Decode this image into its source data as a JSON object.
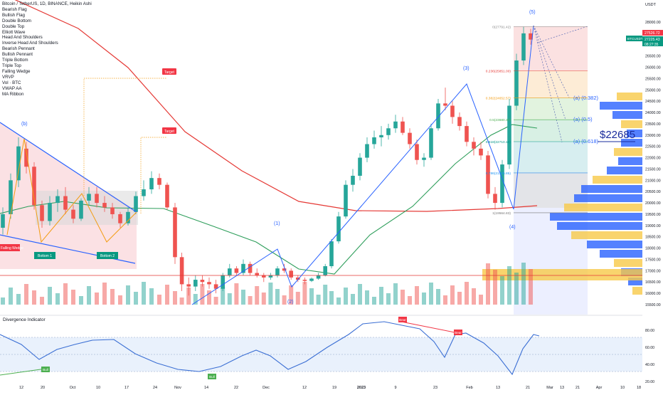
{
  "header": {
    "title": "Bitcoin / TetherUS, 1D, BINANCE, Heikin Ashi",
    "indicators": [
      "Bearish Flag",
      "Bullish Flag",
      "Double Bottom",
      "Double Top",
      "Elliott Wave",
      "Head And Shoulders",
      "Inverse Head And Shoulders",
      "Bearish Pennant",
      "Bullish Pennant",
      "Triple Bottom",
      "Triple Top",
      "Falling Wedge",
      "VRVP",
      "Vol · BTC",
      "VWAP AA",
      "MA Ribbon"
    ]
  },
  "colors": {
    "up": "#26a69a",
    "down": "#ef5350",
    "wave": "#2962ff",
    "ma_red": "#e53935",
    "ma_green": "#2e9e5b",
    "label_red": "#f23645",
    "label_teal": "#089981",
    "volprofile_blue": "#2962ff",
    "volprofile_yellow": "#f7c948"
  },
  "price_axis": {
    "unit": "USDT",
    "ticks": [
      "28000.00",
      "27500.00",
      "27000.00",
      "26500.00",
      "26000.00",
      "25500.00",
      "25000.00",
      "24500.00",
      "24000.00",
      "23500.00",
      "23000.00",
      "22500.00",
      "22000.00",
      "21500.00",
      "21000.00",
      "20500.00",
      "20000.00",
      "19500.00",
      "19000.00",
      "18500.00",
      "18000.00",
      "17500.00",
      "17000.00",
      "16500.00",
      "16000.00",
      "15500.00"
    ],
    "last_price": "27526.72",
    "tag_label": "BTCUSDT",
    "tag_price": "27225.43",
    "tag_countdown": "08:27:35"
  },
  "time_axis": {
    "labels": [
      "12",
      "20",
      "Oct",
      "10",
      "17",
      "24",
      "Nov",
      "14",
      "22",
      "Dec",
      "12",
      "19",
      "2023",
      "9",
      "23",
      "Feb",
      "13",
      "21",
      "Mar",
      "13",
      "21",
      "Apr",
      "10",
      "18"
    ]
  },
  "annotations": {
    "waves": [
      "(b)",
      "(1)",
      "(2)",
      "(3)",
      "(4)",
      "(5)",
      "(a) (0.382)",
      "(a) (0.5)",
      "(a) (0.618)"
    ],
    "pattern_labels": [
      "Falling Wedge",
      "Bottom 1",
      "Bottom 2"
    ],
    "targets": [
      "Target",
      "Target"
    ],
    "fib_levels": [
      "0(27791.42)",
      "0.236(25851.00)",
      "0.382(24652.57)",
      "0.5(23680.37)",
      "0.618(22710.18)",
      "0.786(21325.85)",
      "1(19564.83)"
    ],
    "price_callout": "$22685"
  },
  "indicator_pane": {
    "title": "Divergence Indicator",
    "ticks": [
      "80.00",
      "60.00",
      "40.00",
      "20.00"
    ],
    "signals": [
      "Bull",
      "Bull",
      "Bear",
      "Bear"
    ]
  },
  "chart_data": {
    "type": "candlestick",
    "title": "Bitcoin / TetherUS, 1D, BINANCE, Heikin Ashi",
    "ylim": [
      15400,
      28400
    ],
    "candles": [
      [
        18900,
        19800,
        18600,
        19500
      ],
      [
        19500,
        21300,
        19300,
        21000
      ],
      [
        21000,
        22900,
        20700,
        22500
      ],
      [
        22400,
        22700,
        21300,
        21600
      ],
      [
        21600,
        21800,
        19700,
        19900
      ],
      [
        19900,
        20100,
        18900,
        19200
      ],
      [
        19200,
        20300,
        19000,
        20000
      ],
      [
        20000,
        20600,
        19600,
        20300
      ],
      [
        20300,
        20700,
        19500,
        19700
      ],
      [
        19700,
        19900,
        19100,
        19300
      ],
      [
        19300,
        20200,
        19200,
        20100
      ],
      [
        20100,
        20700,
        19900,
        20400
      ],
      [
        20400,
        20700,
        19800,
        20000
      ],
      [
        20000,
        20300,
        19600,
        19800
      ],
      [
        19800,
        20000,
        19300,
        19500
      ],
      [
        19500,
        19600,
        18900,
        19100
      ],
      [
        19100,
        19800,
        19000,
        19600
      ],
      [
        19600,
        20500,
        19500,
        20300
      ],
      [
        20300,
        21000,
        20100,
        20600
      ],
      [
        20600,
        21400,
        20400,
        21100
      ],
      [
        21100,
        21300,
        20600,
        20800
      ],
      [
        20800,
        20900,
        19700,
        19800
      ],
      [
        19800,
        20000,
        17300,
        17600
      ],
      [
        17600,
        17800,
        16100,
        16400
      ],
      [
        16400,
        16700,
        15900,
        16300
      ],
      [
        16300,
        16800,
        16100,
        16600
      ],
      [
        16600,
        16800,
        16300,
        16500
      ],
      [
        16500,
        16700,
        16200,
        16400
      ],
      [
        16400,
        16600,
        16000,
        16200
      ],
      [
        16200,
        16900,
        16100,
        16800
      ],
      [
        16800,
        17300,
        16700,
        17100
      ],
      [
        17100,
        17200,
        16800,
        16900
      ],
      [
        16900,
        17500,
        16800,
        17300
      ],
      [
        17300,
        17400,
        16800,
        16900
      ],
      [
        16900,
        17100,
        16700,
        16800
      ],
      [
        16800,
        16900,
        16500,
        16700
      ],
      [
        16700,
        16900,
        16600,
        16800
      ],
      [
        16800,
        17200,
        16700,
        17100
      ],
      [
        17100,
        17300,
        16900,
        17000
      ],
      [
        17000,
        17100,
        16600,
        16700
      ],
      [
        16700,
        16800,
        16500,
        16600
      ],
      [
        16600,
        16700,
        16400,
        16550
      ],
      [
        16550,
        16700,
        16500,
        16650
      ],
      [
        16650,
        16900,
        16600,
        16800
      ],
      [
        16800,
        17300,
        16750,
        17200
      ],
      [
        17200,
        18400,
        17100,
        18300
      ],
      [
        18300,
        19600,
        18200,
        19400
      ],
      [
        19400,
        21000,
        19300,
        20800
      ],
      [
        20800,
        21500,
        20500,
        21200
      ],
      [
        21200,
        22200,
        21000,
        22000
      ],
      [
        22000,
        22900,
        21800,
        22600
      ],
      [
        22600,
        23200,
        22400,
        22900
      ],
      [
        22900,
        23400,
        22500,
        23000
      ],
      [
        23000,
        23500,
        22800,
        23300
      ],
      [
        23300,
        23900,
        23100,
        23600
      ],
      [
        23600,
        23800,
        23000,
        23100
      ],
      [
        23100,
        23300,
        22400,
        22600
      ],
      [
        22600,
        22800,
        21700,
        21900
      ],
      [
        21900,
        22200,
        21600,
        22000
      ],
      [
        22000,
        23500,
        21900,
        23300
      ],
      [
        23300,
        24600,
        23200,
        24400
      ],
      [
        24400,
        25100,
        24100,
        24300
      ],
      [
        24300,
        24500,
        23500,
        23800
      ],
      [
        23800,
        24000,
        23200,
        23400
      ],
      [
        23400,
        23600,
        22500,
        22700
      ],
      [
        22700,
        22900,
        22100,
        22400
      ],
      [
        22400,
        22700,
        21900,
        22100
      ],
      [
        22100,
        22300,
        20200,
        20400
      ],
      [
        20400,
        20700,
        19700,
        20000
      ],
      [
        20000,
        21900,
        19800,
        21700
      ],
      [
        21700,
        24600,
        21500,
        24300
      ],
      [
        24300,
        26600,
        24100,
        26300
      ],
      [
        26300,
        27800,
        26100,
        27500
      ],
      [
        27500,
        27700,
        27000,
        27226
      ]
    ],
    "fib_levels": [
      {
        "ratio": "0",
        "price": 27791.42
      },
      {
        "ratio": "0.236",
        "price": 25851.0
      },
      {
        "ratio": "0.382",
        "price": 24652.57
      },
      {
        "ratio": "0.5",
        "price": 23680.37
      },
      {
        "ratio": "0.618",
        "price": 22710.18
      },
      {
        "ratio": "0.786",
        "price": 21325.85
      },
      {
        "ratio": "1",
        "price": 19564.83
      }
    ]
  }
}
